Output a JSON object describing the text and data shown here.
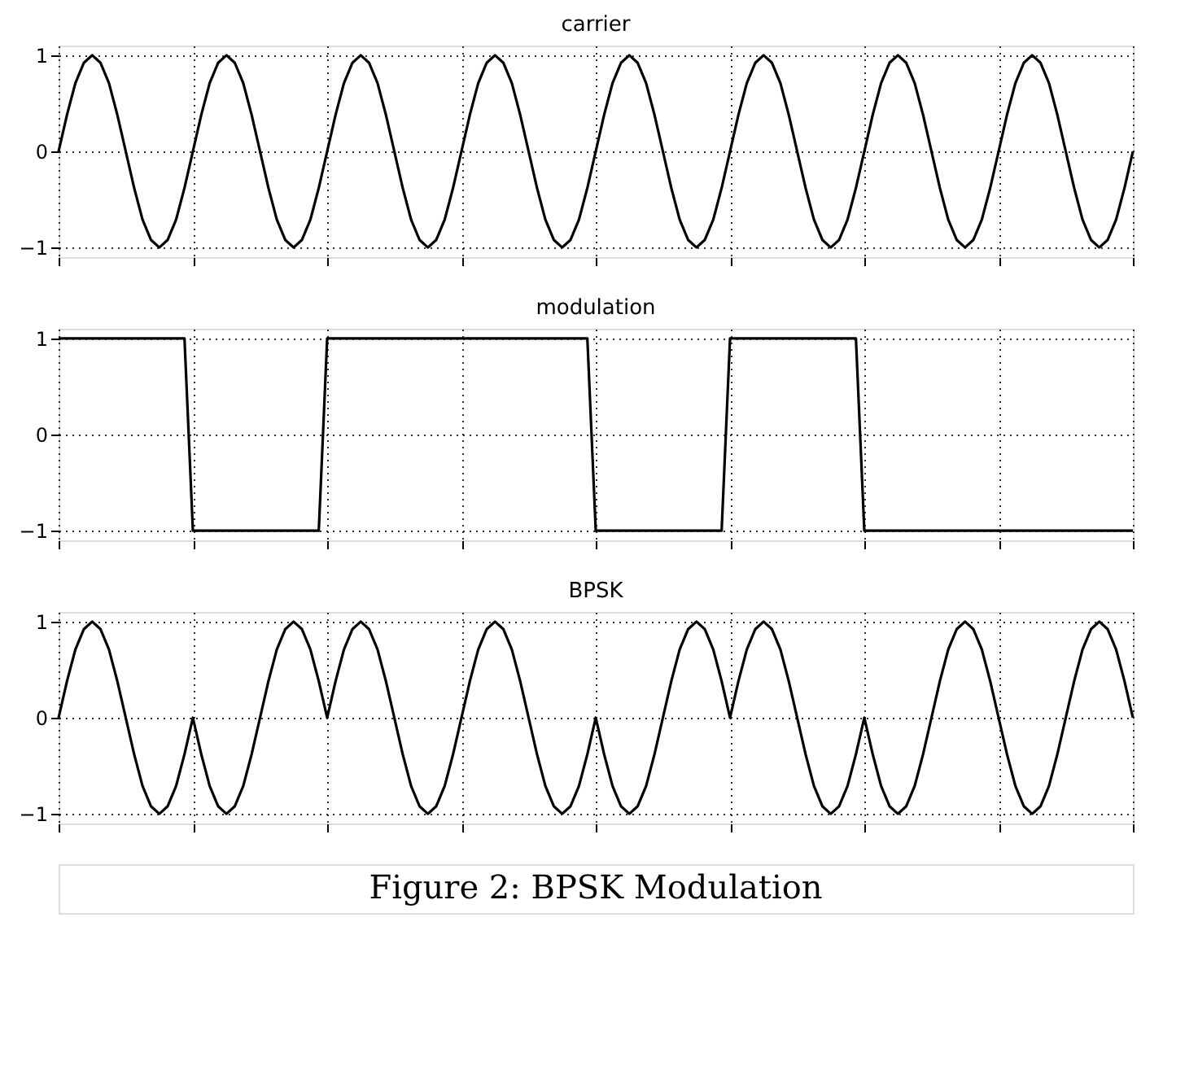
{
  "chart_data": [
    {
      "type": "line",
      "title": "carrier",
      "categories": [
        null,
        null,
        null,
        null,
        null,
        null,
        null,
        null,
        null,
        null,
        null,
        null,
        null,
        null,
        null,
        null,
        null,
        null,
        null,
        null,
        null,
        null,
        null,
        null,
        null,
        null,
        null,
        null,
        null,
        null,
        null,
        null,
        null,
        null,
        null,
        null,
        null,
        null,
        null,
        null,
        null,
        null,
        null,
        null,
        null,
        null,
        null,
        null,
        null,
        null,
        null,
        null,
        null,
        null,
        null,
        null,
        null,
        null,
        null,
        null,
        null,
        null,
        null,
        null,
        null,
        null,
        null,
        null,
        null,
        null,
        null,
        null,
        null,
        null,
        null,
        null,
        null,
        null,
        null,
        null,
        null,
        null,
        null,
        null,
        null,
        null,
        null,
        null,
        null,
        null,
        null,
        null,
        null,
        null,
        null,
        null,
        null,
        null,
        null,
        null,
        null,
        null,
        null,
        null,
        null,
        null,
        null,
        null,
        null,
        null,
        null,
        null,
        null,
        null,
        null,
        null,
        null,
        null,
        null,
        null,
        null,
        null,
        null,
        null,
        null,
        null,
        null,
        null,
        null
      ],
      "series": [
        {
          "color": "#000000",
          "values": [
            0,
            0.38,
            0.71,
            0.92,
            1,
            0.92,
            0.71,
            0.38,
            0,
            -0.38,
            -0.71,
            -0.92,
            -1,
            -0.92,
            -0.71,
            -0.38,
            0,
            0.38,
            0.71,
            0.92,
            1,
            0.92,
            0.71,
            0.38,
            0,
            -0.38,
            -0.71,
            -0.92,
            -1,
            -0.92,
            -0.71,
            -0.38,
            0,
            0.38,
            0.71,
            0.92,
            1,
            0.92,
            0.71,
            0.38,
            0,
            -0.38,
            -0.71,
            -0.92,
            -1,
            -0.92,
            -0.71,
            -0.38,
            0,
            0.38,
            0.71,
            0.92,
            1,
            0.92,
            0.71,
            0.38,
            0,
            -0.38,
            -0.71,
            -0.92,
            -1,
            -0.92,
            -0.71,
            -0.38,
            0,
            0.38,
            0.71,
            0.92,
            1,
            0.92,
            0.71,
            0.38,
            0,
            -0.38,
            -0.71,
            -0.92,
            -1,
            -0.92,
            -0.71,
            -0.38,
            0,
            0.38,
            0.71,
            0.92,
            1,
            0.92,
            0.71,
            0.38,
            0,
            -0.38,
            -0.71,
            -0.92,
            -1,
            -0.92,
            -0.71,
            -0.38,
            0,
            0.38,
            0.71,
            0.92,
            1,
            0.92,
            0.71,
            0.38,
            0,
            -0.38,
            -0.71,
            -0.92,
            -1,
            -0.92,
            -0.71,
            -0.38,
            0,
            0.38,
            0.71,
            0.92,
            1,
            0.92,
            0.71,
            0.38,
            0,
            -0.38,
            -0.71,
            -0.92,
            -1,
            -0.92,
            -0.71,
            -0.38,
            0
          ]
        }
      ],
      "ylim": [
        -1.1,
        1.1
      ],
      "yticks": [
        -1,
        0,
        1
      ],
      "grid": true,
      "tick_labels": "y",
      "line_style": "solid"
    },
    {
      "type": "line",
      "title": "modulation",
      "categories": [
        null,
        null,
        null,
        null,
        null,
        null,
        null,
        null,
        null,
        null,
        null,
        null,
        null,
        null,
        null,
        null,
        null,
        null,
        null,
        null,
        null,
        null,
        null,
        null,
        null,
        null,
        null,
        null,
        null,
        null,
        null,
        null,
        null,
        null,
        null,
        null,
        null,
        null,
        null,
        null,
        null,
        null,
        null,
        null,
        null,
        null,
        null,
        null,
        null,
        null,
        null,
        null,
        null,
        null,
        null,
        null,
        null,
        null,
        null,
        null,
        null,
        null,
        null,
        null,
        null,
        null,
        null,
        null,
        null,
        null,
        null,
        null,
        null,
        null,
        null,
        null,
        null,
        null,
        null,
        null,
        null,
        null,
        null,
        null,
        null,
        null,
        null,
        null,
        null,
        null,
        null,
        null,
        null,
        null,
        null,
        null,
        null,
        null,
        null,
        null,
        null,
        null,
        null,
        null,
        null,
        null,
        null,
        null,
        null,
        null,
        null,
        null,
        null,
        null,
        null,
        null,
        null,
        null,
        null,
        null,
        null,
        null,
        null,
        null,
        null,
        null,
        null,
        null,
        null
      ],
      "series": [
        {
          "color": "#000000",
          "values": [
            1,
            1,
            1,
            1,
            1,
            1,
            1,
            1,
            1,
            1,
            1,
            1,
            1,
            1,
            1,
            1,
            -1,
            -1,
            -1,
            -1,
            -1,
            -1,
            -1,
            -1,
            -1,
            -1,
            -1,
            -1,
            -1,
            -1,
            -1,
            -1,
            1,
            1,
            1,
            1,
            1,
            1,
            1,
            1,
            1,
            1,
            1,
            1,
            1,
            1,
            1,
            1,
            1,
            1,
            1,
            1,
            1,
            1,
            1,
            1,
            1,
            1,
            1,
            1,
            1,
            1,
            1,
            1,
            -1,
            -1,
            -1,
            -1,
            -1,
            -1,
            -1,
            -1,
            -1,
            -1,
            -1,
            -1,
            -1,
            -1,
            -1,
            -1,
            1,
            1,
            1,
            1,
            1,
            1,
            1,
            1,
            1,
            1,
            1,
            1,
            1,
            1,
            1,
            1,
            -1,
            -1,
            -1,
            -1,
            -1,
            -1,
            -1,
            -1,
            -1,
            -1,
            -1,
            -1,
            -1,
            -1,
            -1,
            -1,
            -1,
            -1,
            -1,
            -1,
            -1,
            -1,
            -1,
            -1,
            -1,
            -1,
            -1,
            -1,
            -1,
            -1,
            -1,
            -1,
            -1
          ]
        }
      ],
      "ylim": [
        -1.1,
        1.1
      ],
      "yticks": [
        -1,
        0,
        1
      ],
      "grid": true,
      "tick_labels": "y",
      "line_style": "solid"
    },
    {
      "type": "line",
      "title": "BPSK",
      "categories": [
        null,
        null,
        null,
        null,
        null,
        null,
        null,
        null,
        null,
        null,
        null,
        null,
        null,
        null,
        null,
        null,
        null,
        null,
        null,
        null,
        null,
        null,
        null,
        null,
        null,
        null,
        null,
        null,
        null,
        null,
        null,
        null,
        null,
        null,
        null,
        null,
        null,
        null,
        null,
        null,
        null,
        null,
        null,
        null,
        null,
        null,
        null,
        null,
        null,
        null,
        null,
        null,
        null,
        null,
        null,
        null,
        null,
        null,
        null,
        null,
        null,
        null,
        null,
        null,
        null,
        null,
        null,
        null,
        null,
        null,
        null,
        null,
        null,
        null,
        null,
        null,
        null,
        null,
        null,
        null,
        null,
        null,
        null,
        null,
        null,
        null,
        null,
        null,
        null,
        null,
        null,
        null,
        null,
        null,
        null,
        null,
        null,
        null,
        null,
        null,
        null,
        null,
        null,
        null,
        null,
        null,
        null,
        null,
        null,
        null,
        null,
        null,
        null,
        null,
        null,
        null,
        null,
        null,
        null,
        null,
        null,
        null,
        null,
        null,
        null,
        null,
        null,
        null,
        null
      ],
      "series": [
        {
          "color": "#000000",
          "values": [
            0,
            0.38,
            0.71,
            0.92,
            1,
            0.92,
            0.71,
            0.38,
            0,
            -0.38,
            -0.71,
            -0.92,
            -1,
            -0.92,
            -0.71,
            -0.38,
            0,
            -0.38,
            -0.71,
            -0.92,
            -1,
            -0.92,
            -0.71,
            -0.38,
            0,
            0.38,
            0.71,
            0.92,
            1,
            0.92,
            0.71,
            0.38,
            0,
            0.38,
            0.71,
            0.92,
            1,
            0.92,
            0.71,
            0.38,
            0,
            -0.38,
            -0.71,
            -0.92,
            -1,
            -0.92,
            -0.71,
            -0.38,
            0,
            0.38,
            0.71,
            0.92,
            1,
            0.92,
            0.71,
            0.38,
            0,
            -0.38,
            -0.71,
            -0.92,
            -1,
            -0.92,
            -0.71,
            -0.38,
            0,
            -0.38,
            -0.71,
            -0.92,
            -1,
            -0.92,
            -0.71,
            -0.38,
            0,
            0.38,
            0.71,
            0.92,
            1,
            0.92,
            0.71,
            0.38,
            0,
            0.38,
            0.71,
            0.92,
            1,
            0.92,
            0.71,
            0.38,
            0,
            -0.38,
            -0.71,
            -0.92,
            -1,
            -0.92,
            -0.71,
            -0.38,
            0,
            -0.38,
            -0.71,
            -0.92,
            -1,
            -0.92,
            -0.71,
            -0.38,
            0,
            0.38,
            0.71,
            0.92,
            1,
            0.92,
            0.71,
            0.38,
            0,
            -0.38,
            -0.71,
            -0.92,
            -1,
            -0.92,
            -0.71,
            -0.38,
            0,
            0.38,
            0.71,
            0.92,
            1,
            0.92,
            0.71,
            0.38,
            0
          ]
        }
      ],
      "ylim": [
        -1.1,
        1.1
      ],
      "yticks": [
        -1,
        0,
        1
      ],
      "grid": true,
      "tick_labels": "y",
      "line_style": "solid",
      "annotations": [
        "Figure 2: BPSK Modulation"
      ]
    }
  ]
}
